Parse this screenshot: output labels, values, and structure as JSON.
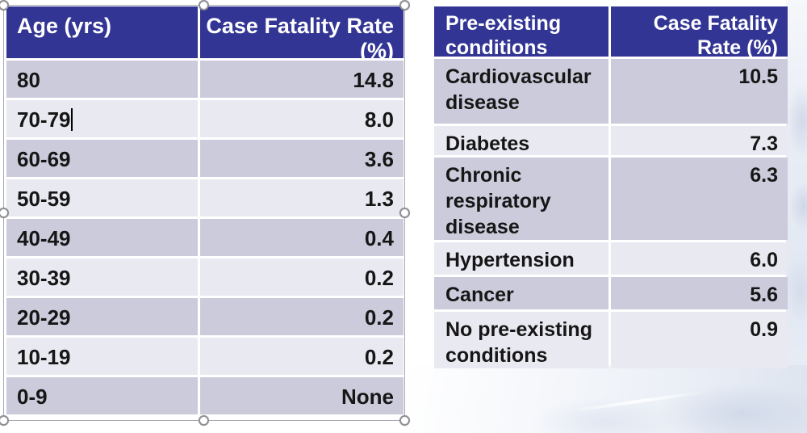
{
  "slide": {
    "context": "presentation table slide",
    "colors": {
      "header_bg": "#333594",
      "header_text": "#FFFFFF",
      "row_dark": "#CBCBDC",
      "row_light": "#E9E9F2",
      "cell_text": "#161616",
      "selection_outline": "#A8A8B0"
    }
  },
  "left_table": {
    "columns": [
      "Age (yrs)",
      "Case Fatality Rate (%)"
    ],
    "rows": [
      {
        "age": "80",
        "rate": "14.8"
      },
      {
        "age": "70-79",
        "rate": "8.0"
      },
      {
        "age": "60-69",
        "rate": "3.6"
      },
      {
        "age": "50-59",
        "rate": "1.3"
      },
      {
        "age": "40-49",
        "rate": "0.4"
      },
      {
        "age": "30-39",
        "rate": "0.2"
      },
      {
        "age": "20-29",
        "rate": "0.2"
      },
      {
        "age": "10-19",
        "rate": "0.2"
      },
      {
        "age": "0-9",
        "rate": "None"
      }
    ]
  },
  "right_table": {
    "columns": [
      "Pre-existing conditions",
      "Case Fatality Rate (%)"
    ],
    "rows": [
      {
        "condition": "Cardiovascular disease",
        "rate": "10.5"
      },
      {
        "condition": "Diabetes",
        "rate": "7.3"
      },
      {
        "condition": "Chronic respiratory disease",
        "rate": "6.3"
      },
      {
        "condition": "Hypertension",
        "rate": "6.0"
      },
      {
        "condition": "Cancer",
        "rate": "5.6"
      },
      {
        "condition": "No pre-existing conditions",
        "rate": "0.9"
      }
    ]
  }
}
